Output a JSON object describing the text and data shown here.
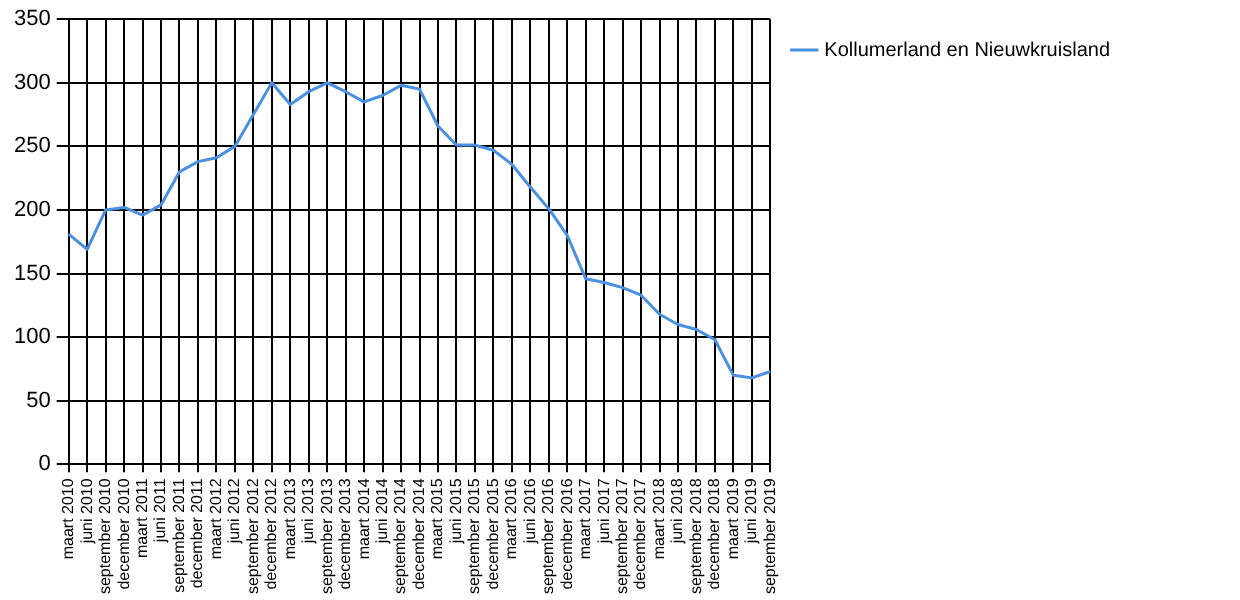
{
  "chart_data": {
    "type": "line",
    "categories": [
      "maart 2010",
      "juni 2010",
      "september 2010",
      "december 2010",
      "maart 2011",
      "juni 2011",
      "september 2011",
      "december 2011",
      "maart 2012",
      "juni 2012",
      "september 2012",
      "december 2012",
      "maart 2013",
      "juni 2013",
      "september 2013",
      "december 2013",
      "maart 2014",
      "juni 2014",
      "september 2014",
      "december 2014",
      "maart 2015",
      "juni 2015",
      "september 2015",
      "december 2015",
      "maart 2016",
      "juni 2016",
      "september 2016",
      "december 2016",
      "maart 2017",
      "juni 2017",
      "september 2017",
      "december 2017",
      "maart 2018",
      "juni 2018",
      "september 2018",
      "december 2018",
      "maart 2019",
      "juni 2019",
      "september 2019"
    ],
    "series": [
      {
        "name": "Kollumerland en Nieuwkruisland",
        "color": "#4a90e2",
        "values": [
          181,
          169,
          200,
          202,
          196,
          204,
          230,
          238,
          241,
          250,
          275,
          300,
          283,
          293,
          300,
          293,
          285,
          290,
          298,
          295,
          266,
          251,
          251,
          247,
          236,
          218,
          201,
          180,
          146,
          143,
          139,
          133,
          118,
          110,
          106,
          98,
          70,
          68,
          73
        ]
      }
    ],
    "ylim": [
      0,
      350
    ],
    "yticks": [
      0,
      50,
      100,
      150,
      200,
      250,
      300,
      350
    ],
    "grid": true,
    "legend": "top right",
    "marker": "none",
    "line_style": "solid"
  }
}
